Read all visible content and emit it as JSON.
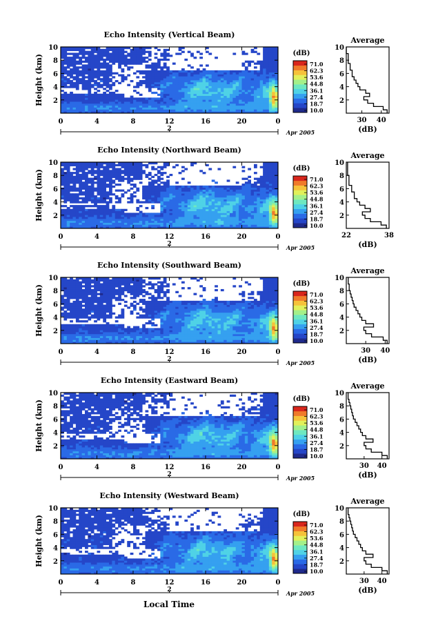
{
  "figure": {
    "xlabel_bottom": "Local Time"
  },
  "colorbar": {
    "unit_label": "(dB)",
    "ticks": [
      "71.0",
      "62.3",
      "53.6",
      "44.8",
      "36.1",
      "27.4",
      "18.7",
      "10.0"
    ],
    "colors": [
      "#1f2a8c",
      "#2546c8",
      "#2a6ae6",
      "#35a0f0",
      "#4fd2e6",
      "#6ee8c0",
      "#a4f08a",
      "#e2f05a",
      "#f6c23a",
      "#f07a2a",
      "#d9261c"
    ]
  },
  "chart_data": [
    {
      "type": "heatmap",
      "title": "Echo Intensity (Vertical Beam)",
      "ylabel": "Height (km)",
      "ylim": [
        0,
        10
      ],
      "yticks": [
        "2",
        "4",
        "6",
        "8",
        "10"
      ],
      "xlim": [
        0,
        24
      ],
      "xticks": [
        "0",
        "4",
        "8",
        "12",
        "16",
        "20",
        "0"
      ],
      "date_labels": [
        "Apr 2005"
      ],
      "date_number": "2",
      "zlim": [
        10.0,
        71.0
      ],
      "average": {
        "title": "Average",
        "xlabel": "(dB)",
        "xticks": [
          "30",
          "40"
        ],
        "xlim": [
          22,
          44
        ],
        "heights": [
          0.5,
          1.0,
          1.5,
          2.0,
          2.5,
          3.0,
          3.5,
          4.0,
          4.5,
          5.0,
          5.5,
          6.0,
          6.5,
          7.0,
          7.5,
          8.0,
          8.5,
          9.0,
          9.5,
          10.0
        ],
        "values": [
          43,
          41,
          36,
          33,
          31,
          34,
          32,
          29,
          28,
          27,
          26,
          25,
          25,
          24,
          24,
          23,
          23,
          23,
          22,
          22
        ]
      }
    },
    {
      "type": "heatmap",
      "title": "Echo Intensity (Northward Beam)",
      "ylabel": "Height (km)",
      "ylim": [
        0,
        10
      ],
      "yticks": [
        "2",
        "4",
        "6",
        "8",
        "10"
      ],
      "xlim": [
        0,
        24
      ],
      "xticks": [
        "0",
        "4",
        "8",
        "12",
        "16",
        "20",
        "0"
      ],
      "date_labels": [
        "Apr 2005"
      ],
      "date_number": "2",
      "zlim": [
        10.0,
        71.0
      ],
      "average": {
        "title": "Average",
        "xlabel": "(dB)",
        "xticks": [
          "22",
          "38"
        ],
        "xlim": [
          22,
          38
        ],
        "heights": [
          0.5,
          1.0,
          1.5,
          2.0,
          2.5,
          3.0,
          3.5,
          4.0,
          4.5,
          5.0,
          5.5,
          6.0,
          6.5,
          7.0,
          7.5,
          8.0,
          8.5,
          9.0,
          9.5,
          10.0
        ],
        "values": [
          37,
          35,
          31,
          29,
          28,
          31,
          29,
          27,
          26,
          25,
          25,
          24,
          24,
          23,
          23,
          23,
          22.5,
          22.5,
          22.5,
          22.5
        ]
      }
    },
    {
      "type": "heatmap",
      "title": "Echo Intensity (Southward Beam)",
      "ylabel": "Height (km)",
      "ylim": [
        0,
        10
      ],
      "yticks": [
        "2",
        "4",
        "6",
        "8",
        "10"
      ],
      "xlim": [
        0,
        24
      ],
      "xticks": [
        "0",
        "4",
        "8",
        "12",
        "16",
        "20",
        "0"
      ],
      "date_labels": [
        "Apr 2005"
      ],
      "date_number": "2",
      "zlim": [
        10.0,
        71.0
      ],
      "average": {
        "title": "Average",
        "xlabel": "(dB)",
        "xticks": [
          "30",
          "40"
        ],
        "xlim": [
          20,
          42
        ],
        "heights": [
          0.5,
          1.0,
          1.5,
          2.0,
          2.5,
          3.0,
          3.5,
          4.0,
          4.5,
          5.0,
          5.5,
          6.0,
          6.5,
          7.0,
          7.5,
          8.0,
          8.5,
          9.0,
          9.5,
          10.0
        ],
        "values": [
          41,
          39,
          33,
          30,
          29,
          34,
          30,
          28,
          27,
          26,
          25,
          24,
          23.5,
          23,
          22.5,
          22,
          21.5,
          21.5,
          21,
          21
        ]
      }
    },
    {
      "type": "heatmap",
      "title": "Echo Intensity (Eastward Beam)",
      "ylabel": "Height (km)",
      "ylim": [
        0,
        10
      ],
      "yticks": [
        "2",
        "4",
        "6",
        "8",
        "10"
      ],
      "xlim": [
        0,
        24
      ],
      "xticks": [
        "0",
        "4",
        "8",
        "12",
        "16",
        "20",
        "0"
      ],
      "date_labels": [
        "Apr 2005"
      ],
      "date_number": "2",
      "zlim": [
        10.0,
        71.0
      ],
      "average": {
        "title": "Average",
        "xlabel": "(dB)",
        "xticks": [
          "30",
          "40"
        ],
        "xlim": [
          20,
          44
        ],
        "heights": [
          0.5,
          1.0,
          1.5,
          2.0,
          2.5,
          3.0,
          3.5,
          4.0,
          4.5,
          5.0,
          5.5,
          6.0,
          6.5,
          7.0,
          7.5,
          8.0,
          8.5,
          9.0,
          9.5,
          10.0
        ],
        "values": [
          43,
          40,
          34,
          31,
          30,
          35,
          31,
          29,
          28,
          27,
          26,
          25,
          24,
          23.5,
          23,
          22.5,
          22,
          21.5,
          21,
          21
        ]
      }
    },
    {
      "type": "heatmap",
      "title": "Echo Intensity (Westward Beam)",
      "ylabel": "Height (km)",
      "ylim": [
        0,
        10
      ],
      "yticks": [
        "2",
        "4",
        "6",
        "8",
        "10"
      ],
      "xlim": [
        0,
        24
      ],
      "xticks": [
        "0",
        "4",
        "8",
        "12",
        "16",
        "20",
        "0"
      ],
      "date_labels": [
        "Apr 2005"
      ],
      "date_number": "2",
      "zlim": [
        10.0,
        71.0
      ],
      "average": {
        "title": "Average",
        "xlabel": "(dB)",
        "xticks": [
          "30",
          "40"
        ],
        "xlim": [
          20,
          44
        ],
        "heights": [
          0.5,
          1.0,
          1.5,
          2.0,
          2.5,
          3.0,
          3.5,
          4.0,
          4.5,
          5.0,
          5.5,
          6.0,
          6.5,
          7.0,
          7.5,
          8.0,
          8.5,
          9.0,
          9.5,
          10.0
        ],
        "values": [
          43,
          40,
          34,
          31,
          30,
          35,
          31,
          29,
          28,
          27,
          26,
          25,
          24,
          23.5,
          23,
          22.5,
          22,
          21.5,
          21,
          21
        ]
      }
    }
  ]
}
